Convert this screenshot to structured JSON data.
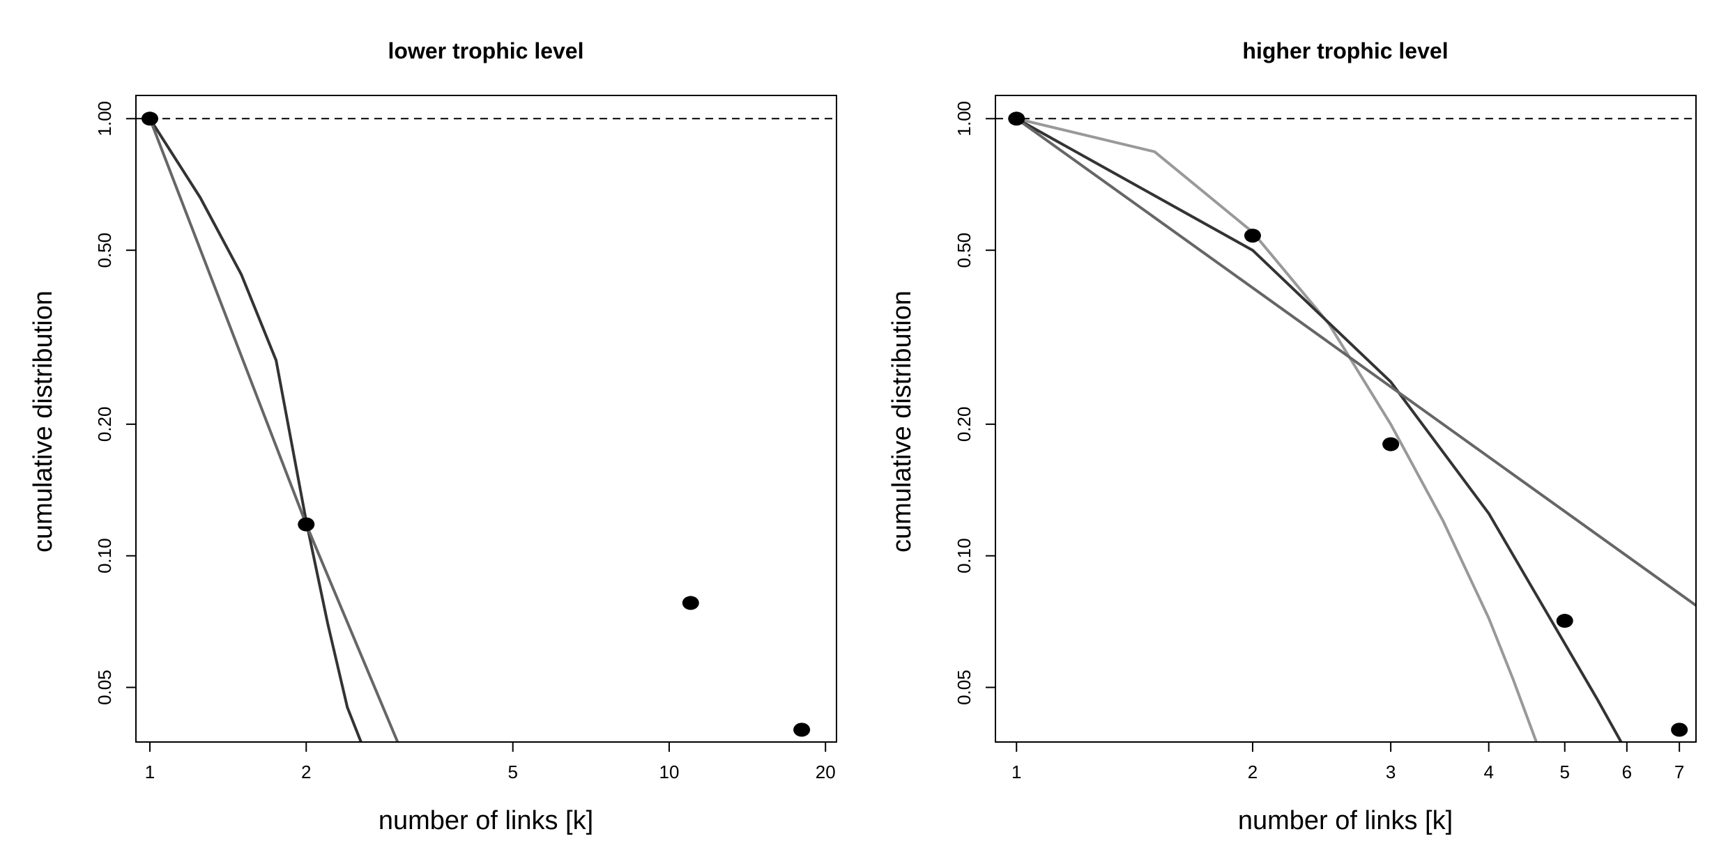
{
  "chart_data": [
    {
      "type": "scatter",
      "title": "lower trophic level",
      "xlabel": "number of links [k]",
      "ylabel": "cumulative distribution",
      "xscale": "log",
      "yscale": "log",
      "xlim": [
        0.94,
        21.0
      ],
      "ylim": [
        0.0375,
        1.13
      ],
      "xticks": [
        1,
        2,
        5,
        10,
        20
      ],
      "xticklabels": [
        "1",
        "2",
        "5",
        "10",
        "20"
      ],
      "yticks": [
        0.05,
        0.1,
        0.2,
        0.5,
        1.0
      ],
      "yticklabels": [
        "0.05",
        "0.10",
        "0.20",
        "0.50",
        "1.00"
      ],
      "grid": false,
      "reference_line": {
        "y": 1.0,
        "style": "dashed"
      },
      "points": {
        "x": [
          1,
          2,
          11,
          18
        ],
        "y": [
          1.0,
          0.118,
          0.078,
          0.04
        ]
      },
      "fits": [
        {
          "kind": "curve",
          "color": "#333333",
          "x": [
            1,
            1.25,
            1.5,
            1.75,
            2,
            2.2,
            2.4,
            2.55
          ],
          "y": [
            1.0,
            0.66,
            0.44,
            0.28,
            0.12,
            0.07,
            0.045,
            0.0375
          ]
        },
        {
          "kind": "curve",
          "color": "#666666",
          "x": [
            1,
            2,
            3.0
          ],
          "y": [
            1.0,
            0.118,
            0.0375
          ]
        }
      ]
    },
    {
      "type": "scatter",
      "title": "higher trophic level",
      "xlabel": "number of links [k]",
      "ylabel": "cumulative distribution",
      "xscale": "log",
      "yscale": "log",
      "xlim": [
        0.94,
        7.35
      ],
      "ylim": [
        0.0375,
        1.13
      ],
      "xticks": [
        1,
        2,
        3,
        4,
        5,
        6,
        7
      ],
      "xticklabels": [
        "1",
        "2",
        "3",
        "4",
        "5",
        "6",
        "7"
      ],
      "yticks": [
        0.05,
        0.1,
        0.2,
        0.5,
        1.0
      ],
      "yticklabels": [
        "0.05",
        "0.10",
        "0.20",
        "0.50",
        "1.00"
      ],
      "grid": false,
      "reference_line": {
        "y": 1.0,
        "style": "dashed"
      },
      "points": {
        "x": [
          1,
          2,
          3,
          5,
          7
        ],
        "y": [
          1.0,
          0.54,
          0.18,
          0.071,
          0.04
        ]
      },
      "fits": [
        {
          "kind": "curve",
          "color": "#999999",
          "x": [
            1,
            1.5,
            2,
            2.5,
            3,
            3.5,
            4,
            4.3,
            4.6
          ],
          "y": [
            1.0,
            0.84,
            0.55,
            0.34,
            0.2,
            0.12,
            0.072,
            0.052,
            0.0375
          ]
        },
        {
          "kind": "curve",
          "color": "#333333",
          "x": [
            1,
            2,
            3,
            4,
            5,
            5.5,
            5.9
          ],
          "y": [
            1.0,
            0.5,
            0.25,
            0.125,
            0.063,
            0.047,
            0.0375
          ]
        },
        {
          "kind": "curve",
          "color": "#666666",
          "x": [
            1,
            7.35
          ],
          "y": [
            1.0,
            0.077
          ]
        }
      ]
    }
  ]
}
